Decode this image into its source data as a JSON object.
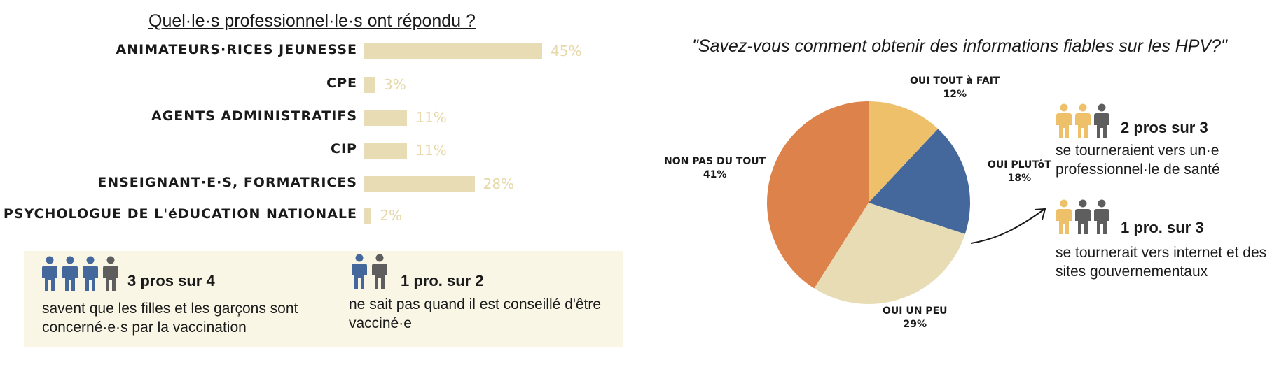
{
  "colors": {
    "bar": "#e8dcb5",
    "bar_value": "#e6d8a8",
    "blue": "#44689c",
    "gray": "#5e5e5e",
    "yellow": "#eec06a",
    "orange": "#dd824a",
    "beige": "#e7dcb4",
    "panel": "#faf6e6"
  },
  "left": {
    "title": "Quel·le·s professionnel·le·s ont répondu ?"
  },
  "chart_data": [
    {
      "type": "bar",
      "orientation": "horizontal",
      "title": "Quel·le·s professionnel·le·s ont répondu ?",
      "categories": [
        "ANIMATEURS·RICES JEUNESSE",
        "CPE",
        "AGENTS ADMINISTRATIFS",
        "CIP",
        "ENSEIGNANT·E·S, FORMATRICES",
        "PSYCHOLOGUE DE L'éDUCATION NATIONALE"
      ],
      "values": [
        45,
        3,
        11,
        11,
        28,
        2
      ],
      "value_labels": [
        "45%",
        "3%",
        "11%",
        "11%",
        "28%",
        "2%"
      ],
      "xlim": [
        0,
        45
      ],
      "grid": false
    },
    {
      "type": "pie",
      "title": "\"Savez-vous comment obtenir des informations fiables sur les HPV?\"",
      "slices": [
        {
          "label": "OUI TOUT à FAIT",
          "value": 12,
          "value_label": "12%"
        },
        {
          "label": "OUI PLUTôT",
          "value": 18,
          "value_label": "18%"
        },
        {
          "label": "OUI UN PEU",
          "value": 29,
          "value_label": "29%"
        },
        {
          "label": "NON PAS DU TOUT",
          "value": 41,
          "value_label": "41%"
        }
      ],
      "legend": "none"
    }
  ],
  "stats": {
    "s1": {
      "title": "3 pros sur 4",
      "text": "savent que les filles et les garçons sont concerné·e·s par la vaccination",
      "highlighted": 3,
      "total": 4
    },
    "s2": {
      "title": "1 pro. sur 2",
      "text": "ne sait pas quand il est conseillé d'être vacciné·e",
      "highlighted": 1,
      "total": 2
    },
    "s3": {
      "title": "2 pros sur 3",
      "text": "se tourneraient vers un·e professionnel·le de santé",
      "highlighted": 2,
      "total": 3
    },
    "s4": {
      "title": "1 pro. sur 3",
      "text": "se tournerait vers internet et des sites gouvernementaux",
      "highlighted": 1,
      "total": 3
    }
  }
}
